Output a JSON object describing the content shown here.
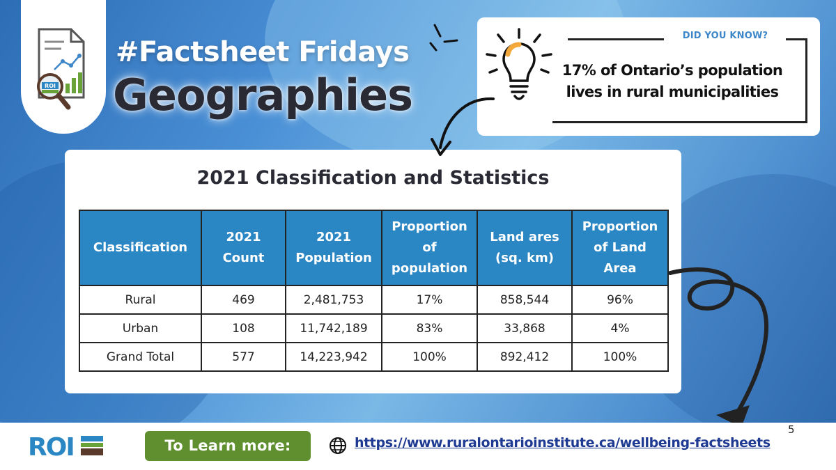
{
  "header": {
    "hashtag_title": "#Factsheet Fridays",
    "topic_title": "Geographies"
  },
  "logo_tile": {
    "badge_text": "ROI"
  },
  "did_you_know": {
    "label": "DID YOU KNOW?",
    "line1": "17% of Ontario’s population",
    "line2": "lives in rural municipalities"
  },
  "table": {
    "title": "2021 Classification and Statistics",
    "headers": [
      {
        "l1": "Classification",
        "l2": "",
        "l3": ""
      },
      {
        "l1": "2021",
        "l2": "Count",
        "l3": ""
      },
      {
        "l1": "2021",
        "l2": "Population",
        "l3": ""
      },
      {
        "l1": "Proportion",
        "l2": "of",
        "l3": "population"
      },
      {
        "l1": "Land ares",
        "l2": "(sq. km)",
        "l3": ""
      },
      {
        "l1": "Proportion",
        "l2": "of Land",
        "l3": "Area"
      }
    ],
    "rows": [
      [
        "Rural",
        "469",
        "2,481,753",
        "17%",
        "858,544",
        "96%"
      ],
      [
        "Urban",
        "108",
        "11,742,189",
        "83%",
        "33,868",
        "4%"
      ],
      [
        "Grand Total",
        "577",
        "14,223,942",
        "100%",
        "892,412",
        "100%"
      ]
    ]
  },
  "footer": {
    "page_number": "5",
    "roi_logo_text": "ROI",
    "learn_more_label": "To Learn more:",
    "url": "https://www.ruralontarioinstitute.ca/wellbeing-factsheets"
  },
  "colors": {
    "header_blue": "#2b86c4",
    "accent_label_blue": "#3d87c9",
    "button_green": "#5f8f2f",
    "link_navy": "#1f3a93",
    "bulb_orange": "#f4a83a"
  }
}
